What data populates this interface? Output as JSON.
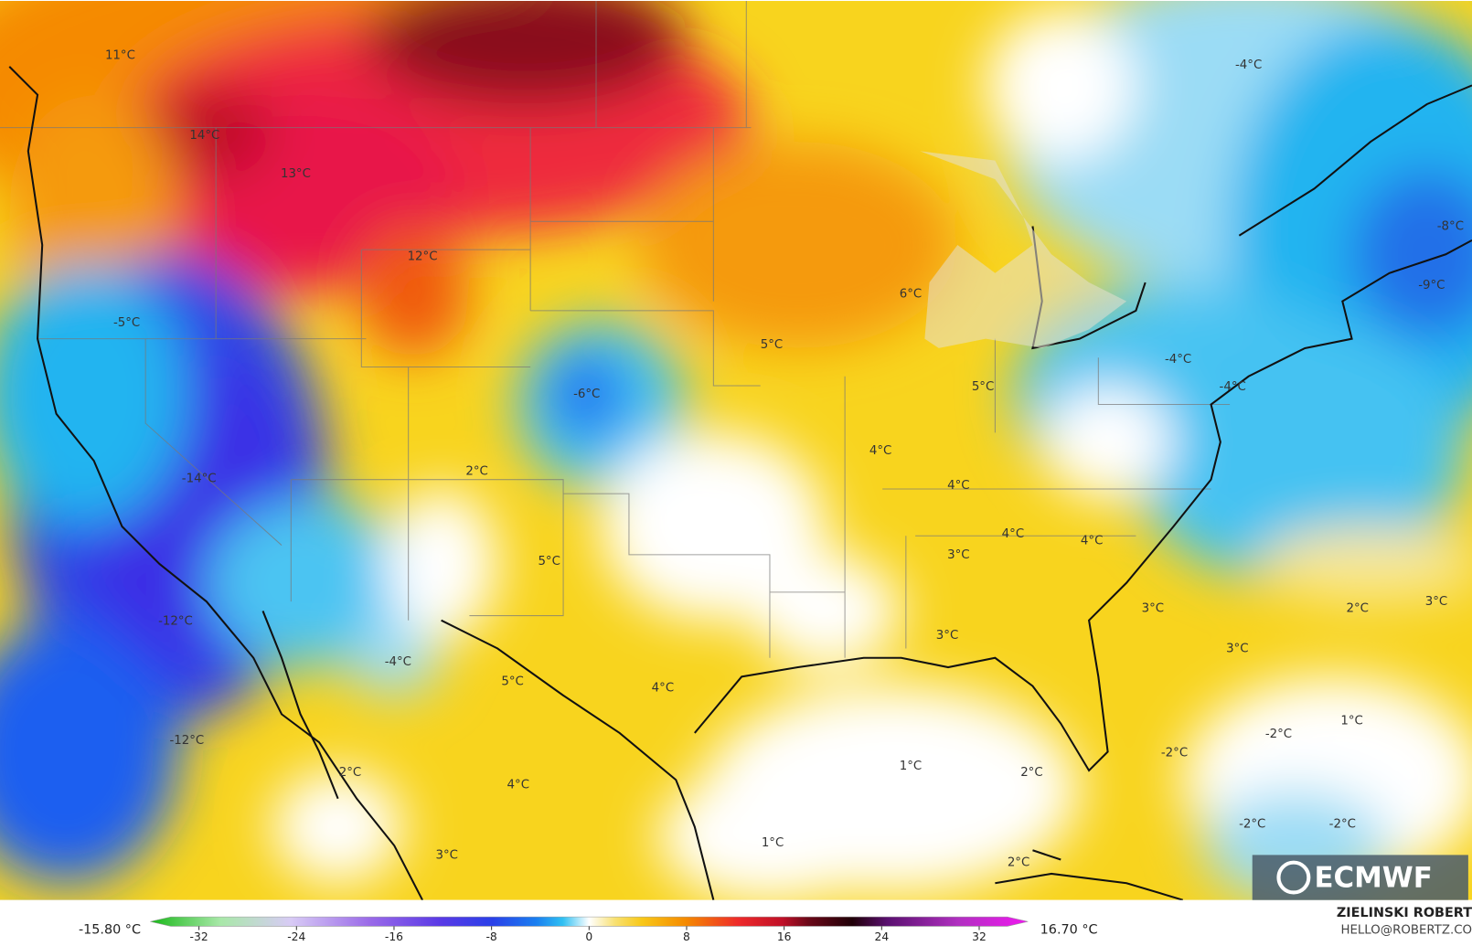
{
  "map": {
    "labels": [
      "11°C",
      "-4°C",
      "14°C",
      "13°C",
      "-8°C",
      "12°C",
      "6°C",
      "-9°C",
      "-5°C",
      "5°C",
      "-4°C",
      "5°C",
      "-6°C",
      "-4°C",
      "4°C",
      "-14°C",
      "2°C",
      "4°C",
      "4°C",
      "4°C",
      "3°C",
      "5°C",
      "3°C",
      "2°C",
      "3°C",
      "-12°C",
      "3°C",
      "3°C",
      "-4°C",
      "5°C",
      "4°C",
      "1°C",
      "-2°C",
      "-12°C",
      "-2°C",
      "2°C",
      "1°C",
      "2°C",
      "4°C",
      "1°C",
      "-2°C",
      "-2°C",
      "3°C",
      "2°C"
    ],
    "colorbar": {
      "min_label": "-15.80 °C",
      "max_label": "16.70 °C",
      "lim": [
        -36,
        36
      ],
      "ticks": [
        -32,
        -24,
        -16,
        -8,
        0,
        8,
        16,
        24,
        32
      ]
    },
    "logo": "ECMWF",
    "author": "ZIELINSKI ROBERT",
    "contact": "HELLO@ROBERTZ.CO"
  }
}
